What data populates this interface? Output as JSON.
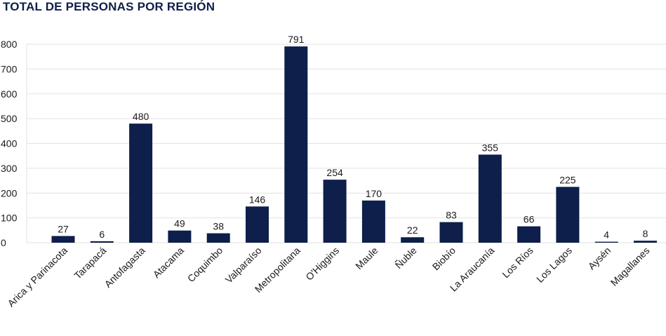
{
  "chart_data": {
    "type": "bar",
    "title": "TOTAL DE PERSONAS POR REGIÓN",
    "categories": [
      "Arica y Parinacota",
      "Tarapacá",
      "Antofagasta",
      "Atacama",
      "Coquimbo",
      "Valparaíso",
      "Metropolitana",
      "O'Higgins",
      "Maule",
      "Ñuble",
      "Biobío",
      "La Araucanía",
      "Los Ríos",
      "Los Lagos",
      "Aysén",
      "Magallanes"
    ],
    "values": [
      27,
      6,
      480,
      49,
      38,
      146,
      791,
      254,
      170,
      22,
      83,
      355,
      66,
      225,
      4,
      8
    ],
    "data_labels": [
      "27",
      "6",
      "480",
      "49",
      "38",
      "146",
      "791",
      "254",
      "170",
      "22",
      "83",
      "355",
      "66",
      "225",
      "4",
      "8"
    ],
    "ylim": [
      0,
      800
    ],
    "yticks": [
      0,
      100,
      200,
      300,
      400,
      500,
      600,
      700,
      800
    ],
    "xlabel": "",
    "ylabel": "",
    "grid": true,
    "bar_color": "#0d1f4a",
    "grid_color": "#e2e2e2"
  }
}
